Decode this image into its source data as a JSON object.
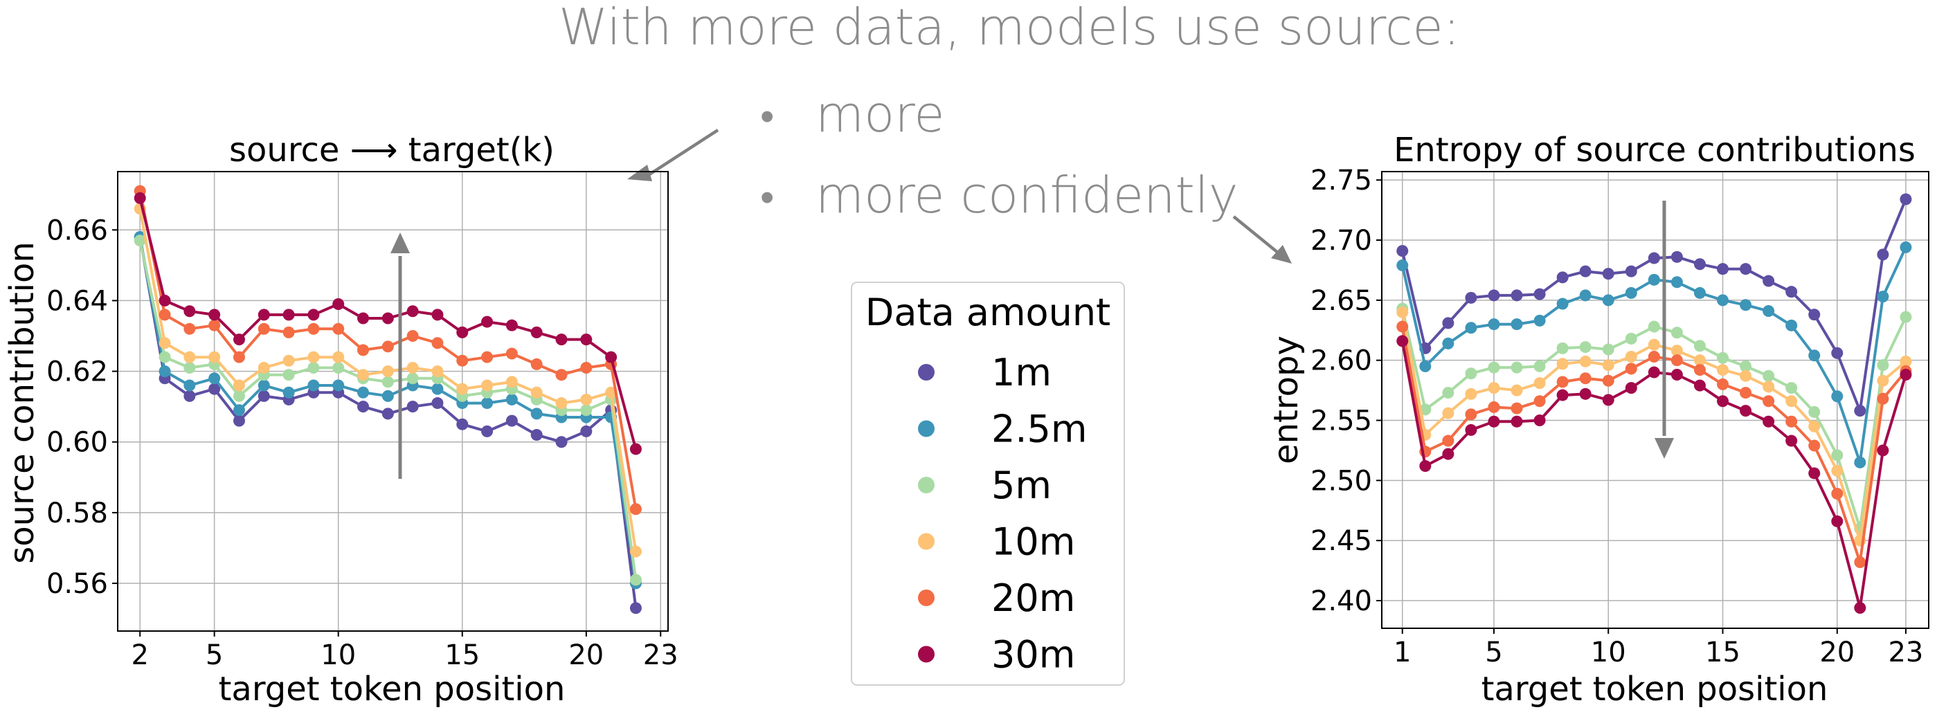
{
  "headline": "With more data, models use source:",
  "bullets": [
    {
      "marker": "•",
      "text": "more"
    },
    {
      "marker": "•",
      "text": "more confidently"
    }
  ],
  "legend": {
    "title": "Data amount",
    "entries": [
      "1m",
      "2.5m",
      "5m",
      "10m",
      "20m",
      "30m"
    ]
  },
  "colors": [
    "#5e4fa2",
    "#3d95b8",
    "#a8dba3",
    "#fdc274",
    "#f36c44",
    "#a3094a"
  ],
  "chart_data": [
    {
      "type": "line",
      "title": "source ⟶ target(k)",
      "xlabel": "target token position",
      "ylabel": "source contribution",
      "xlim": [
        1.1,
        23.3
      ],
      "ylim": [
        0.5465,
        0.6765
      ],
      "xticks": [
        2,
        5,
        10,
        15,
        20,
        23
      ],
      "yticks": [
        0.56,
        0.58,
        0.6,
        0.62,
        0.64,
        0.66
      ],
      "ytick_labels": [
        "0.56",
        "0.58",
        "0.60",
        "0.62",
        "0.64",
        "0.66"
      ],
      "grid": true,
      "x": [
        2,
        3,
        4,
        5,
        6,
        7,
        8,
        9,
        10,
        11,
        12,
        13,
        14,
        15,
        16,
        17,
        18,
        19,
        20,
        21,
        22
      ],
      "series": [
        {
          "name": "1m",
          "values": [
            0.658,
            0.618,
            0.613,
            0.615,
            0.606,
            0.613,
            0.612,
            0.614,
            0.614,
            0.61,
            0.608,
            0.61,
            0.611,
            0.605,
            0.603,
            0.606,
            0.602,
            0.6,
            0.603,
            0.609,
            0.553
          ]
        },
        {
          "name": "2.5m",
          "values": [
            0.658,
            0.62,
            0.616,
            0.618,
            0.609,
            0.616,
            0.614,
            0.616,
            0.616,
            0.614,
            0.613,
            0.616,
            0.615,
            0.611,
            0.611,
            0.612,
            0.608,
            0.607,
            0.607,
            0.607,
            0.56
          ]
        },
        {
          "name": "5m",
          "values": [
            0.657,
            0.624,
            0.621,
            0.622,
            0.613,
            0.619,
            0.619,
            0.621,
            0.621,
            0.618,
            0.617,
            0.618,
            0.618,
            0.613,
            0.614,
            0.615,
            0.612,
            0.609,
            0.609,
            0.612,
            0.561
          ]
        },
        {
          "name": "10m",
          "values": [
            0.666,
            0.628,
            0.624,
            0.624,
            0.616,
            0.621,
            0.623,
            0.624,
            0.624,
            0.619,
            0.62,
            0.621,
            0.62,
            0.615,
            0.616,
            0.617,
            0.614,
            0.611,
            0.612,
            0.614,
            0.569
          ]
        },
        {
          "name": "20m",
          "values": [
            0.671,
            0.636,
            0.632,
            0.633,
            0.624,
            0.632,
            0.631,
            0.632,
            0.632,
            0.626,
            0.627,
            0.63,
            0.628,
            0.623,
            0.624,
            0.625,
            0.622,
            0.619,
            0.621,
            0.622,
            0.581
          ]
        },
        {
          "name": "30m",
          "values": [
            0.669,
            0.64,
            0.637,
            0.636,
            0.629,
            0.636,
            0.636,
            0.636,
            0.639,
            0.635,
            0.635,
            0.637,
            0.636,
            0.631,
            0.634,
            0.633,
            0.631,
            0.629,
            0.629,
            0.624,
            0.598
          ]
        }
      ]
    },
    {
      "type": "line",
      "title": "Entropy of source contributions",
      "xlabel": "target token position",
      "ylabel": "entropy",
      "xlim": [
        0.1,
        24.0
      ],
      "ylim": [
        2.377,
        2.757
      ],
      "xticks": [
        1,
        5,
        10,
        15,
        20,
        23
      ],
      "yticks": [
        2.4,
        2.45,
        2.5,
        2.55,
        2.6,
        2.65,
        2.7,
        2.75
      ],
      "ytick_labels": [
        "2.40",
        "2.45",
        "2.50",
        "2.55",
        "2.60",
        "2.65",
        "2.70",
        "2.75"
      ],
      "grid": true,
      "x": [
        1,
        2,
        3,
        4,
        5,
        6,
        7,
        8,
        9,
        10,
        11,
        12,
        13,
        14,
        15,
        16,
        17,
        18,
        19,
        20,
        21,
        22,
        23
      ],
      "series": [
        {
          "name": "1m",
          "values": [
            2.691,
            2.61,
            2.631,
            2.652,
            2.654,
            2.654,
            2.655,
            2.669,
            2.674,
            2.672,
            2.674,
            2.685,
            2.686,
            2.68,
            2.676,
            2.676,
            2.666,
            2.657,
            2.638,
            2.606,
            2.558,
            2.688,
            2.734
          ]
        },
        {
          "name": "2.5m",
          "values": [
            2.679,
            2.595,
            2.614,
            2.627,
            2.63,
            2.63,
            2.633,
            2.647,
            2.654,
            2.65,
            2.656,
            2.667,
            2.665,
            2.656,
            2.65,
            2.646,
            2.641,
            2.629,
            2.604,
            2.57,
            2.515,
            2.653,
            2.694
          ]
        },
        {
          "name": "5m",
          "values": [
            2.643,
            2.559,
            2.573,
            2.589,
            2.594,
            2.594,
            2.595,
            2.61,
            2.611,
            2.609,
            2.618,
            2.628,
            2.623,
            2.612,
            2.602,
            2.595,
            2.587,
            2.577,
            2.557,
            2.521,
            2.46,
            2.596,
            2.636
          ]
        },
        {
          "name": "10m",
          "values": [
            2.64,
            2.538,
            2.556,
            2.572,
            2.577,
            2.575,
            2.581,
            2.597,
            2.599,
            2.596,
            2.603,
            2.613,
            2.608,
            2.6,
            2.592,
            2.587,
            2.578,
            2.566,
            2.545,
            2.508,
            2.45,
            2.583,
            2.599
          ]
        },
        {
          "name": "20m",
          "values": [
            2.628,
            2.524,
            2.533,
            2.555,
            2.561,
            2.56,
            2.566,
            2.582,
            2.585,
            2.583,
            2.593,
            2.603,
            2.6,
            2.592,
            2.58,
            2.573,
            2.566,
            2.549,
            2.529,
            2.489,
            2.432,
            2.568,
            2.591
          ]
        },
        {
          "name": "30m",
          "values": [
            2.616,
            2.512,
            2.522,
            2.542,
            2.549,
            2.549,
            2.55,
            2.571,
            2.572,
            2.567,
            2.577,
            2.59,
            2.588,
            2.579,
            2.566,
            2.558,
            2.549,
            2.533,
            2.506,
            2.466,
            2.394,
            2.525,
            2.588
          ]
        }
      ]
    }
  ]
}
